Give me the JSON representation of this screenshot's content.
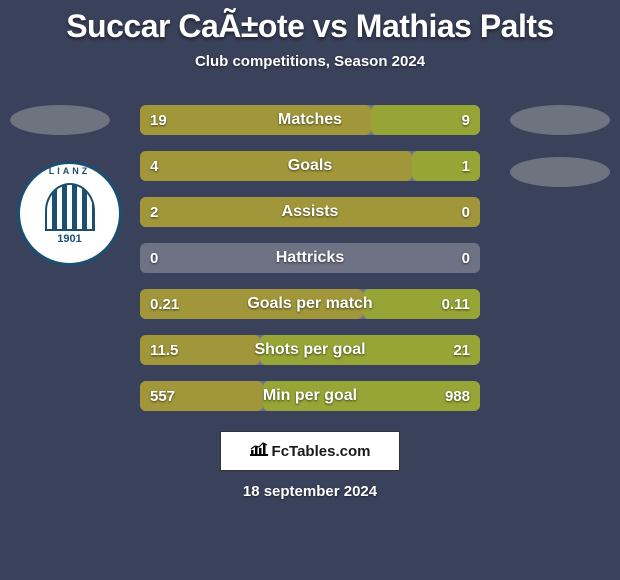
{
  "background_color": "#3a415a",
  "title": "Succar CaÃ±ote vs Mathias Palts",
  "subtitle": "Club competitions, Season 2024",
  "badge_color": "#6f727f",
  "team_logo": {
    "text_top": "LIANZ",
    "year": "1901",
    "border_color": "#1b4f72"
  },
  "bar_colors": {
    "left": "#a1973a",
    "right": "#96a535",
    "empty": "#6e7285"
  },
  "stats": [
    {
      "label": "Matches",
      "left_val": "19",
      "right_val": "9",
      "left_pct": 67.8,
      "right_pct": 32.2
    },
    {
      "label": "Goals",
      "left_val": "4",
      "right_val": "1",
      "left_pct": 80.0,
      "right_pct": 20.0
    },
    {
      "label": "Assists",
      "left_val": "2",
      "right_val": "0",
      "left_pct": 100.0,
      "right_pct": 0.0
    },
    {
      "label": "Hattricks",
      "left_val": "0",
      "right_val": "0",
      "left_pct": 0.0,
      "right_pct": 0.0
    },
    {
      "label": "Goals per match",
      "left_val": "0.21",
      "right_val": "0.11",
      "left_pct": 65.6,
      "right_pct": 34.4
    },
    {
      "label": "Shots per goal",
      "left_val": "11.5",
      "right_val": "21",
      "left_pct": 35.4,
      "right_pct": 64.6
    },
    {
      "label": "Min per goal",
      "left_val": "557",
      "right_val": "988",
      "left_pct": 36.1,
      "right_pct": 63.9
    }
  ],
  "footer_brand": "FcTables.com",
  "date": "18 september 2024"
}
